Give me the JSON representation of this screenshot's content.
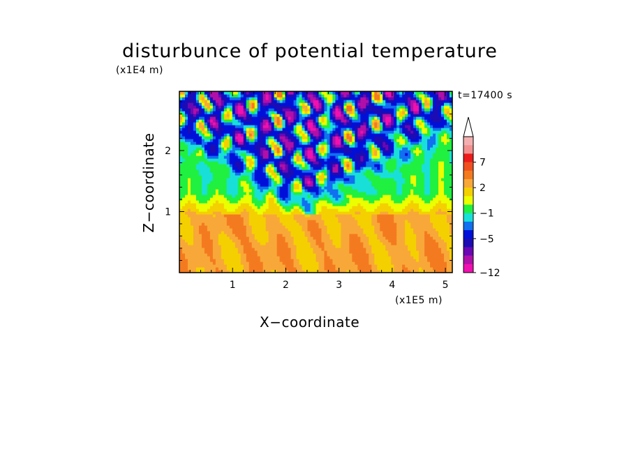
{
  "chart_data": {
    "type": "heatmap",
    "title": "disturbunce of potential temperature",
    "xlabel": "X−coordinate",
    "ylabel": "Z−coordinate",
    "x_unit": "(x1E5 m)",
    "y_unit": "(x1E4 m)",
    "time_label": "t=17400 s",
    "xlim": [
      0,
      5.13
    ],
    "ylim": [
      0,
      2.97
    ],
    "x_ticks": [
      1,
      2,
      3,
      4,
      5
    ],
    "x_tick_labels": [
      "1",
      "2",
      "3",
      "4",
      "5"
    ],
    "y_ticks": [
      1,
      2
    ],
    "y_tick_labels": [
      "1",
      "2"
    ],
    "colorbar": {
      "tick_labels": [
        "7",
        "2",
        "−1",
        "−5",
        "−12"
      ],
      "tick_levels": [
        7,
        2,
        -1,
        -5,
        -12
      ],
      "extend_max": true,
      "levels": [
        {
          "lower": 9,
          "color": "#f4b0b0"
        },
        {
          "lower": 8,
          "color": "#f29090"
        },
        {
          "lower": 7,
          "color": "#ec1c1c"
        },
        {
          "lower": 5,
          "color": "#f05020"
        },
        {
          "lower": 3,
          "color": "#f47a20"
        },
        {
          "lower": 2,
          "color": "#f8a838"
        },
        {
          "lower": 1,
          "color": "#f4d000"
        },
        {
          "lower": 0,
          "color": "#ecff00"
        },
        {
          "lower": -1,
          "color": "#20f040"
        },
        {
          "lower": -2,
          "color": "#18e0d8"
        },
        {
          "lower": -3,
          "color": "#1070f0"
        },
        {
          "lower": -5,
          "color": "#0010d8"
        },
        {
          "lower": -7,
          "color": "#1c0cb4"
        },
        {
          "lower": -8,
          "color": "#6a08b4"
        },
        {
          "lower": -10,
          "color": "#b010a8"
        },
        {
          "lower": -12,
          "color": "#f010b0"
        }
      ]
    },
    "field_structure": {
      "description_of_pattern": "V-shaped inverted wave pattern from x=2.3 z=1.2 diverging upward",
      "center_x": 2.35,
      "apex_z": 1.2,
      "lower_layer_value": 2.5,
      "mid_layer_value": -0.5,
      "upper_layer_value": -4
    }
  }
}
